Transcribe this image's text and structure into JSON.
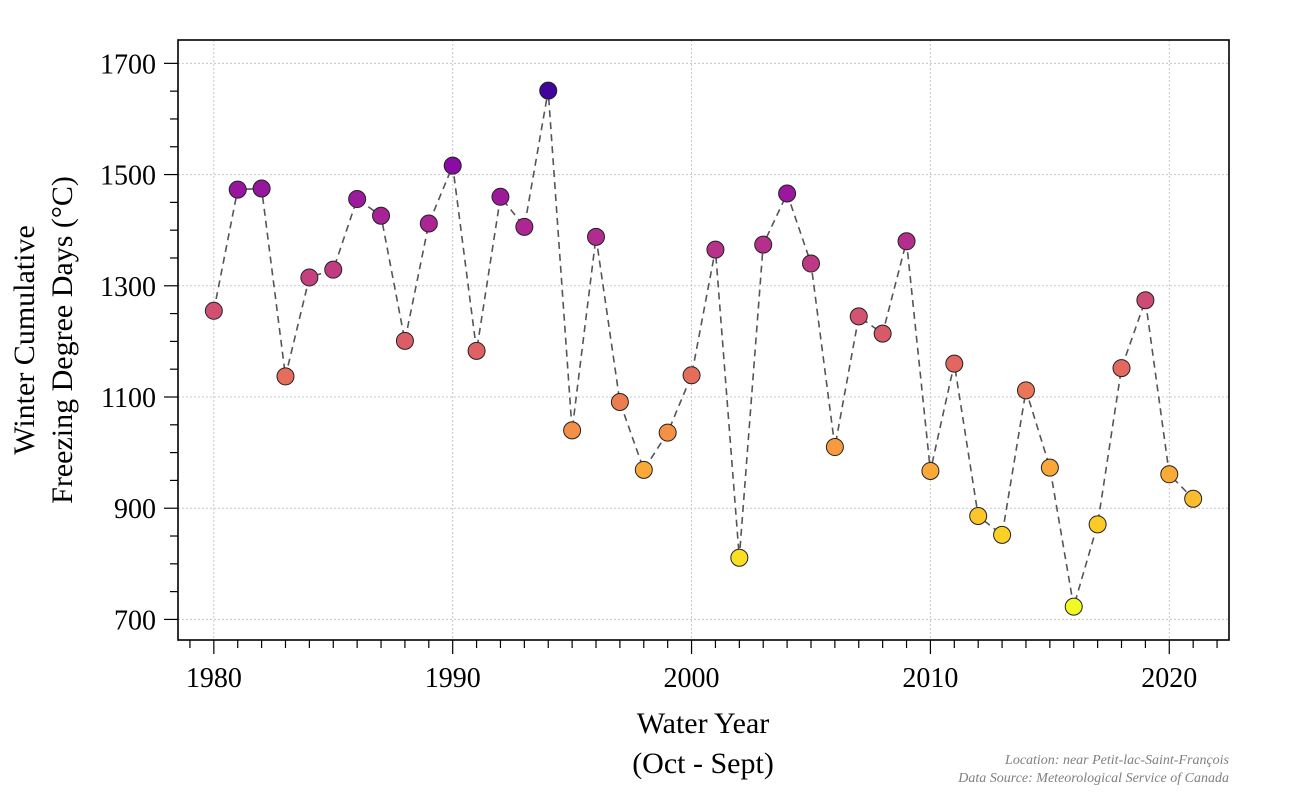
{
  "chart_data": {
    "type": "scatter",
    "xlabel": "Water Year",
    "xlabel_sub": "(Oct - Sept)",
    "ylabel": "Winter Cumulative",
    "ylabel_sub": "Freezing Degree Days (°C)",
    "xlim": [
      1978.5,
      2022.5
    ],
    "ylim": [
      663,
      1742
    ],
    "xticks": [
      1980,
      1990,
      2000,
      2010,
      2020
    ],
    "yticks": [
      700,
      900,
      1100,
      1300,
      1500,
      1700
    ],
    "grid": true,
    "connector": "dashed line",
    "colormap": "plasma (reversed): yellow = low, dark purple = high",
    "x": [
      1980,
      1981,
      1982,
      1983,
      1984,
      1985,
      1986,
      1987,
      1988,
      1989,
      1990,
      1991,
      1992,
      1993,
      1994,
      1995,
      1996,
      1997,
      1998,
      1999,
      2000,
      2001,
      2002,
      2003,
      2004,
      2005,
      2006,
      2007,
      2008,
      2009,
      2010,
      2011,
      2012,
      2013,
      2014,
      2015,
      2016,
      2017,
      2018,
      2019,
      2020,
      2021
    ],
    "values": [
      1255,
      1473,
      1475,
      1137,
      1315,
      1329,
      1456,
      1426,
      1201,
      1412,
      1516,
      1183,
      1460,
      1406,
      1651,
      1040,
      1388,
      1091,
      969,
      1036,
      1139,
      1365,
      811,
      1374,
      1466,
      1340,
      1010,
      1245,
      1214,
      1380,
      967,
      1160,
      886,
      852,
      1112,
      973,
      723,
      871,
      1152,
      1274,
      961,
      917
    ]
  },
  "notes": {
    "location": "Location: near Petit-lac-Saint-François",
    "source": "Data Source: Meteorological Service of Canada"
  }
}
